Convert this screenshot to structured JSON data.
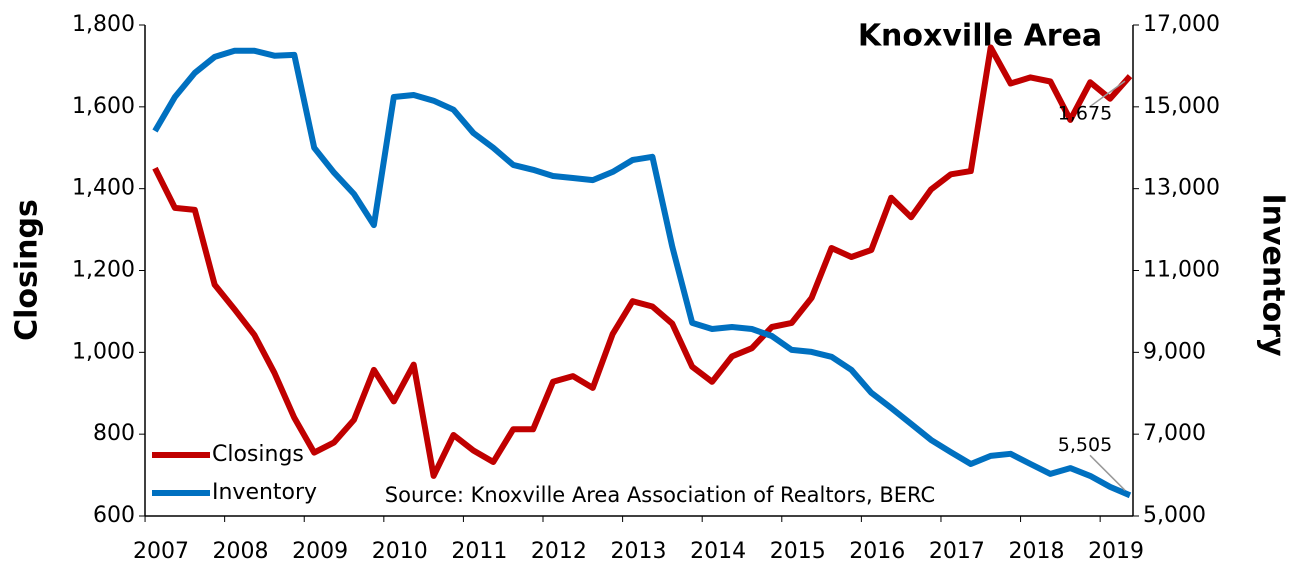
{
  "chart_data": {
    "type": "line",
    "title": "Knoxville Area",
    "annotation": "Source: Knoxville Area Association of Realtors, BERC",
    "y_label": "Closings",
    "y2_label": "Inventory",
    "categories": [
      "2007",
      null,
      null,
      null,
      "2008",
      null,
      null,
      null,
      "2009",
      null,
      null,
      null,
      "2010",
      null,
      null,
      null,
      "2011",
      null,
      null,
      null,
      "2012",
      null,
      null,
      null,
      "2013",
      null,
      null,
      null,
      "2014",
      null,
      null,
      null,
      "2015",
      null,
      null,
      null,
      "2016",
      null,
      null,
      null,
      "2017",
      null,
      null,
      null,
      "2018",
      null,
      null,
      null,
      "2019",
      null
    ],
    "series": [
      {
        "name": "Closings",
        "color": "#c00000",
        "axis": "y",
        "values": [
          1450,
          1353,
          1348,
          1165,
          1105,
          1042,
          950,
          840,
          755,
          780,
          835,
          957,
          880,
          970,
          698,
          798,
          760,
          732,
          812,
          812,
          928,
          942,
          913,
          1045,
          1125,
          1112,
          1070,
          965,
          928,
          990,
          1010,
          1062,
          1072,
          1133,
          1255,
          1233,
          1250,
          1378,
          1330,
          1398,
          1435,
          1443,
          1745,
          1657,
          1672,
          1662,
          1568,
          1660,
          1620,
          1675
        ],
        "value_labels": [
          null,
          null,
          null,
          null,
          null,
          null,
          null,
          null,
          null,
          null,
          null,
          null,
          null,
          null,
          null,
          null,
          null,
          null,
          null,
          null,
          null,
          null,
          null,
          null,
          null,
          null,
          null,
          null,
          null,
          null,
          null,
          null,
          null,
          null,
          null,
          null,
          null,
          null,
          null,
          null,
          null,
          null,
          null,
          null,
          null,
          null,
          null,
          null,
          null,
          "1,675"
        ]
      },
      {
        "name": "Inventory",
        "color": "#0070c0",
        "axis": "y2",
        "values": [
          14410,
          15240,
          15830,
          16220,
          16370,
          16370,
          16250,
          16270,
          14000,
          13390,
          12870,
          12110,
          15240,
          15290,
          15150,
          14930,
          14360,
          14000,
          13580,
          13460,
          13310,
          13260,
          13210,
          13410,
          13700,
          13780,
          11580,
          9720,
          9570,
          9620,
          9570,
          9400,
          9060,
          9010,
          8890,
          8570,
          8010,
          7640,
          7250,
          6860,
          6560,
          6270,
          6470,
          6520,
          6270,
          6030,
          6170,
          5980,
          5710,
          5505
        ],
        "value_labels": [
          null,
          null,
          null,
          null,
          null,
          null,
          null,
          null,
          null,
          null,
          null,
          null,
          null,
          null,
          null,
          null,
          null,
          null,
          null,
          null,
          null,
          null,
          null,
          null,
          null,
          null,
          null,
          null,
          null,
          null,
          null,
          null,
          null,
          null,
          null,
          null,
          null,
          null,
          null,
          null,
          null,
          null,
          null,
          null,
          null,
          null,
          null,
          null,
          null,
          "5,505"
        ]
      }
    ],
    "ylim": [
      600,
      1800
    ],
    "yticks": [
      600,
      800,
      {
        "value": 1000,
        "label": "1,000"
      },
      {
        "value": 1200,
        "label": "1,200"
      },
      {
        "value": 1400,
        "label": "1,400"
      },
      {
        "value": 1600,
        "label": "1,600"
      },
      {
        "value": 1800,
        "label": "1,800"
      }
    ],
    "y2lim": [
      5000,
      17000
    ],
    "y2ticks": [
      {
        "value": 5000,
        "label": "5,000"
      },
      {
        "value": 7000,
        "label": "7,000"
      },
      {
        "value": 9000,
        "label": "9,000"
      },
      {
        "value": 11000,
        "label": "11,000"
      },
      {
        "value": 13000,
        "label": "13,000"
      },
      {
        "value": 15000,
        "label": "15,000"
      },
      {
        "value": 17000,
        "label": "17,000"
      }
    ],
    "legend": "lower left",
    "grid": false
  }
}
